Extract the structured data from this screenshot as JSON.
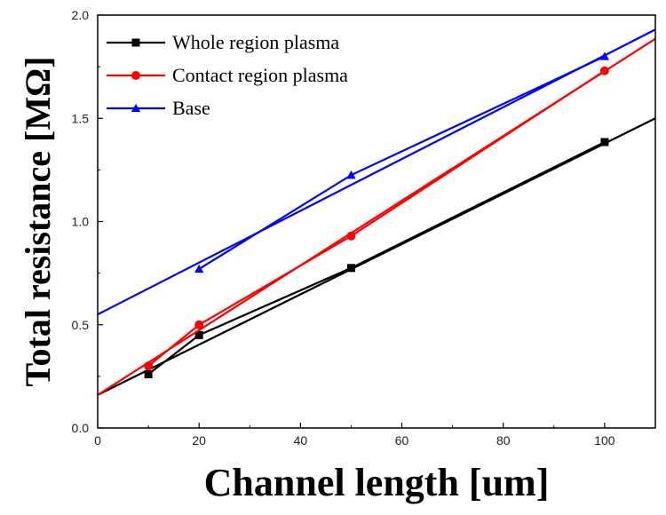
{
  "chart_data": {
    "type": "line",
    "title": "",
    "xlabel": "Channel length [um]",
    "ylabel": "Total resistance [MΩ]",
    "xlim": [
      0,
      110
    ],
    "ylim": [
      0.0,
      2.0
    ],
    "x_ticks": [
      0,
      20,
      40,
      60,
      80,
      100
    ],
    "x_tick_labels": [
      "0",
      "20",
      "40",
      "60",
      "80",
      "100"
    ],
    "y_ticks": [
      0.0,
      0.5,
      1.0,
      1.5,
      2.0
    ],
    "y_tick_labels": [
      "0.0",
      "0.5",
      "1.0",
      "1.5",
      "2.0"
    ],
    "grid": false,
    "legend_position": "top-left",
    "series": [
      {
        "name": "Whole region plasma",
        "color": "#000000",
        "marker": "square",
        "x": [
          10,
          20,
          50,
          100
        ],
        "y": [
          0.26,
          0.45,
          0.775,
          1.385
        ],
        "fit": {
          "x": [
            0,
            110
          ],
          "y": [
            0.16,
            1.5
          ]
        }
      },
      {
        "name": "Contact region plasma",
        "color": "#ff0000",
        "marker": "circle",
        "x": [
          10,
          20,
          50,
          100
        ],
        "y": [
          0.3,
          0.5,
          0.93,
          1.73
        ],
        "fit": {
          "x": [
            0,
            110
          ],
          "y": [
            0.16,
            1.885
          ]
        }
      },
      {
        "name": "Base",
        "color": "#0000ff",
        "marker": "triangle",
        "x": [
          20,
          50,
          100
        ],
        "y": [
          0.77,
          1.225,
          1.8
        ],
        "fit": {
          "x": [
            0,
            110
          ],
          "y": [
            0.55,
            1.93
          ]
        }
      }
    ]
  }
}
